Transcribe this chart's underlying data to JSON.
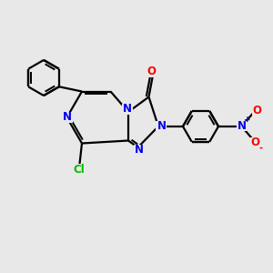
{
  "bg_color": "#e8e8e8",
  "bond_color": "#000000",
  "n_color": "#0000ee",
  "o_color": "#ff0000",
  "cl_color": "#00bb00",
  "figsize": [
    3.0,
    3.0
  ],
  "dpi": 100,
  "xlim": [
    0,
    10
  ],
  "ylim": [
    0,
    10
  ]
}
